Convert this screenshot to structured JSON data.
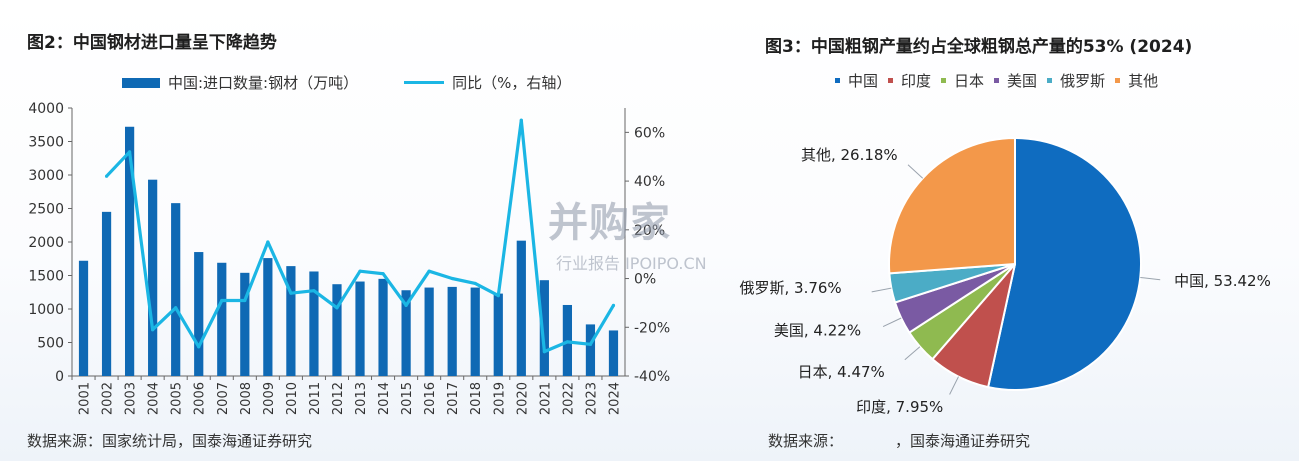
{
  "left": {
    "title": "图2：中国钢材进口量呈下降趋势",
    "source": "数据来源：国家统计局，国泰海通证券研究",
    "legend": {
      "bar": "中国:进口数量:钢材（万吨）",
      "line": "同比（%，右轴）"
    },
    "colors": {
      "bar": "#0f69b4",
      "line": "#1bb6e4"
    }
  },
  "right": {
    "title": "图3：中国粗钢产量约占全球粗钢总产量的53% (2024)",
    "source_prefix": "数据来源：",
    "source_suffix": "，国泰海通证券研究",
    "legend": [
      "中国",
      "印度",
      "日本",
      "美国",
      "俄罗斯",
      "其他"
    ]
  },
  "watermark": {
    "main": "并购家",
    "sub": "行业报告 IPOIPO.CN"
  },
  "chart_data": [
    {
      "type": "bar",
      "categories": [
        "2001",
        "2002",
        "2003",
        "2004",
        "2005",
        "2006",
        "2007",
        "2008",
        "2009",
        "2010",
        "2011",
        "2012",
        "2013",
        "2014",
        "2015",
        "2016",
        "2017",
        "2018",
        "2019",
        "2020",
        "2021",
        "2022",
        "2023",
        "2024"
      ],
      "series": [
        {
          "name": "中国:进口数量:钢材（万吨）",
          "type": "bar",
          "axis": "left",
          "values": [
            1720,
            2450,
            3720,
            2930,
            2580,
            1850,
            1690,
            1540,
            1760,
            1640,
            1560,
            1370,
            1410,
            1450,
            1280,
            1320,
            1330,
            1320,
            1230,
            2020,
            1430,
            1060,
            770,
            680
          ]
        },
        {
          "name": "同比（%，右轴）",
          "type": "line",
          "axis": "right",
          "values": [
            null,
            42,
            52,
            -21,
            -12,
            -28,
            -9,
            -9,
            15,
            -6,
            -5,
            -12,
            3,
            2,
            -11,
            3,
            0,
            -2,
            -7,
            65,
            -30,
            -26,
            -27,
            -11
          ]
        }
      ],
      "ylim": [
        0,
        4000
      ],
      "yticks": [
        0,
        500,
        1000,
        1500,
        2000,
        2500,
        3000,
        3500,
        4000
      ],
      "y2lim": [
        -40,
        70
      ],
      "y2ticks": [
        "-40%",
        "-20%",
        "0%",
        "20%",
        "40%",
        "60%"
      ],
      "grid": false,
      "legend": "top"
    },
    {
      "type": "pie",
      "labels": [
        "中国",
        "印度",
        "日本",
        "美国",
        "俄罗斯",
        "其他"
      ],
      "values": [
        53.42,
        7.95,
        4.47,
        4.22,
        3.76,
        26.18
      ],
      "data_labels": [
        "中国, 53.42%",
        "印度, 7.95%",
        "日本, 4.47%",
        "美国, 4.22%",
        "俄罗斯, 3.76%",
        "其他, 26.18%"
      ],
      "colors": [
        "#0f6cc0",
        "#c0504d",
        "#8fba50",
        "#7a5aa3",
        "#4bacc6",
        "#f3984a"
      ],
      "legend": "top"
    }
  ]
}
